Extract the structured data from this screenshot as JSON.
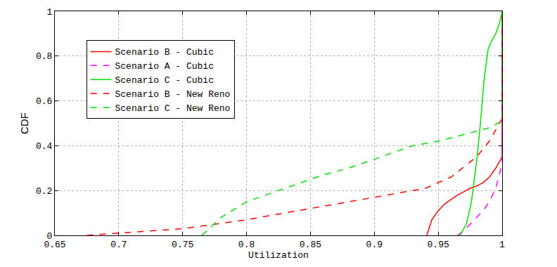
{
  "chart_data": {
    "type": "line",
    "x_label": "Utilization",
    "y_label": "CDF",
    "xlim": [
      0.65,
      1
    ],
    "xticks": [
      0.65,
      0.7,
      0.75,
      0.8,
      0.85,
      0.9,
      0.95,
      1
    ],
    "ylim": [
      0,
      1
    ],
    "yticks": [
      0,
      0.2,
      0.4,
      0.6,
      0.8,
      1
    ],
    "grid": true,
    "legend": "upper left",
    "series": [
      {
        "name": "Scenario B - Cubic",
        "color": "#ff0000",
        "line_style": "solid",
        "x": [
          0.941,
          0.945,
          0.95,
          0.955,
          0.96,
          0.965,
          0.97,
          0.975,
          0.98,
          0.985,
          0.99,
          0.995,
          1.0,
          1.0
        ],
        "values": [
          0,
          0.07,
          0.11,
          0.14,
          0.16,
          0.18,
          0.195,
          0.21,
          0.22,
          0.235,
          0.26,
          0.3,
          0.35,
          1
        ]
      },
      {
        "name": "Scenario A - Cubic",
        "color": "#ff00ff",
        "line_style": "dash",
        "x": [
          0.965,
          0.97,
          0.975,
          0.98,
          0.985,
          0.99,
          0.995,
          1.0,
          1.0
        ],
        "values": [
          0,
          0.02,
          0.05,
          0.08,
          0.11,
          0.15,
          0.21,
          0.32,
          1
        ]
      },
      {
        "name": "Scenario C - Cubic",
        "color": "#00dd00",
        "line_style": "solid",
        "x": [
          0.967,
          0.972,
          0.976,
          0.98,
          0.983,
          0.986,
          0.989,
          0.992,
          0.995,
          0.998,
          1.0
        ],
        "values": [
          0,
          0.05,
          0.15,
          0.33,
          0.5,
          0.7,
          0.83,
          0.87,
          0.9,
          0.95,
          1
        ]
      },
      {
        "name": "Scenario B - New Reno",
        "color": "#ff0000",
        "line_style": "dash",
        "x": [
          0.675,
          0.7,
          0.75,
          0.8,
          0.85,
          0.9,
          0.94,
          0.96,
          0.98,
          0.99,
          1.0,
          1.0
        ],
        "values": [
          0,
          0.01,
          0.03,
          0.07,
          0.12,
          0.17,
          0.21,
          0.26,
          0.35,
          0.42,
          0.52,
          1
        ]
      },
      {
        "name": "Scenario C - New Reno",
        "color": "#00dd00",
        "line_style": "dash",
        "x": [
          0.765,
          0.78,
          0.8,
          0.82,
          0.84,
          0.86,
          0.88,
          0.9,
          0.92,
          0.93,
          0.95,
          0.97,
          0.99,
          1.0,
          1.0
        ],
        "values": [
          0,
          0.08,
          0.15,
          0.19,
          0.23,
          0.27,
          0.3,
          0.34,
          0.38,
          0.4,
          0.42,
          0.45,
          0.48,
          0.51,
          1
        ]
      }
    ]
  }
}
